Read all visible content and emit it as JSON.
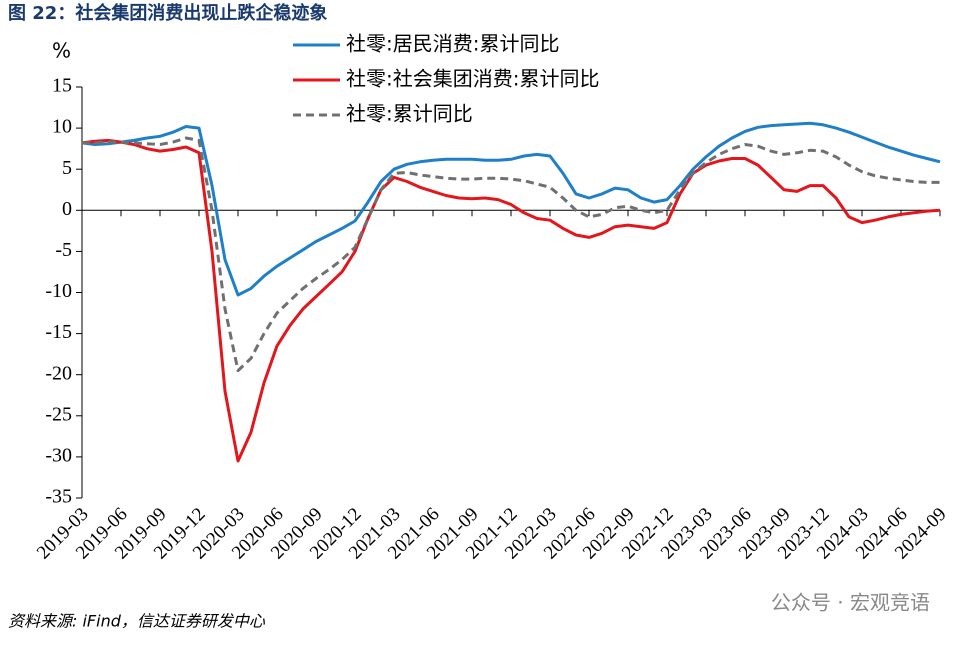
{
  "chart_data": {
    "type": "line",
    "title": "图 22：社会集团消费出现止跌企稳迹象",
    "y_label": "%",
    "source": "资料来源: iFind，信达证券研发中心",
    "watermark": "公众号 · 宏观竞语",
    "categories": [
      "2019-03",
      null,
      null,
      "2019-06",
      null,
      null,
      "2019-09",
      null,
      null,
      "2019-12",
      null,
      null,
      "2020-03",
      null,
      null,
      "2020-06",
      null,
      null,
      "2020-09",
      null,
      null,
      "2020-12",
      null,
      null,
      "2021-03",
      null,
      null,
      "2021-06",
      null,
      null,
      "2021-09",
      null,
      null,
      "2021-12",
      null,
      null,
      "2022-03",
      null,
      null,
      "2022-06",
      null,
      null,
      "2022-09",
      null,
      null,
      "2022-12",
      null,
      null,
      "2023-03",
      null,
      null,
      "2023-06",
      null,
      null,
      "2023-09",
      null,
      null,
      "2023-12",
      null,
      null,
      "2024-03",
      null,
      null,
      "2024-06",
      null,
      null,
      "2024-09"
    ],
    "series": [
      {
        "name": "社零:居民消费:累计同比",
        "color": "#1f7fc8",
        "dash": false,
        "values": [
          8.2,
          8.0,
          8.1,
          8.3,
          8.5,
          8.8,
          9.0,
          9.5,
          10.2,
          10.0,
          3,
          -6,
          -10.3,
          -9.5,
          -8,
          -6.8,
          -5.8,
          -4.8,
          -3.8,
          -3,
          -2.2,
          -1.3,
          1.0,
          3.5,
          5.0,
          5.6,
          5.9,
          6.1,
          6.2,
          6.2,
          6.2,
          6.1,
          6.1,
          6.2,
          6.6,
          6.8,
          6.6,
          4.5,
          2.0,
          1.5,
          2.0,
          2.7,
          2.5,
          1.5,
          1.0,
          1.3,
          3,
          5,
          6.5,
          7.8,
          8.8,
          9.6,
          10.1,
          10.3,
          10.4,
          10.5,
          10.6,
          10.4,
          10.0,
          9.5,
          8.9,
          8.3,
          7.7,
          7.2,
          6.7,
          6.3,
          5.9
        ]
      },
      {
        "name": "社零:社会集团消费:累计同比",
        "color": "#e3161c",
        "dash": false,
        "values": [
          8.2,
          8.4,
          8.5,
          8.3,
          8.0,
          7.5,
          7.2,
          7.4,
          7.7,
          7.0,
          -5,
          -22,
          -30.5,
          -27,
          -21,
          -16.5,
          -14,
          -12,
          -10.5,
          -9,
          -7.5,
          -5,
          -1,
          2.5,
          4.0,
          3.5,
          2.8,
          2.3,
          1.8,
          1.5,
          1.4,
          1.5,
          1.3,
          0.7,
          -0.3,
          -1.0,
          -1.2,
          -2.2,
          -3.0,
          -3.3,
          -2.8,
          -2.0,
          -1.8,
          -2.0,
          -2.2,
          -1.5,
          2,
          4.5,
          5.5,
          6.0,
          6.3,
          6.3,
          5.5,
          4.0,
          2.5,
          2.3,
          3.0,
          3.0,
          1.5,
          -0.8,
          -1.5,
          -1.2,
          -0.8,
          -0.5,
          -0.3,
          -0.1,
          0
        ]
      },
      {
        "name": "社零:累计同比",
        "color": "#707070",
        "dash": true,
        "values": [
          8.2,
          8.2,
          8.3,
          8.3,
          8.2,
          8.1,
          8.0,
          8.3,
          8.8,
          8.5,
          0,
          -12,
          -19.5,
          -18,
          -15,
          -12.5,
          -11,
          -9.5,
          -8.3,
          -7.2,
          -6,
          -4.5,
          -1,
          2.5,
          4.5,
          4.6,
          4.3,
          4.1,
          3.9,
          3.8,
          3.8,
          3.9,
          3.9,
          3.8,
          3.6,
          3.2,
          2.8,
          1.5,
          0,
          -0.8,
          -0.5,
          0.3,
          0.5,
          0,
          -0.3,
          0,
          2.5,
          4.5,
          5.8,
          6.8,
          7.5,
          8.0,
          7.8,
          7.2,
          6.8,
          7.0,
          7.3,
          7.2,
          6.5,
          5.5,
          4.7,
          4.2,
          3.9,
          3.7,
          3.5,
          3.4,
          3.4
        ]
      }
    ],
    "ylim": [
      -35,
      15
    ],
    "yticks": [
      -35,
      -30,
      -25,
      -20,
      -15,
      -10,
      -5,
      0,
      5,
      10,
      15
    ]
  }
}
